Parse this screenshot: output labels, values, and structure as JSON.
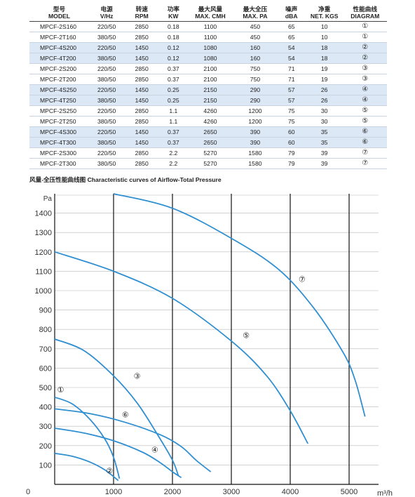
{
  "table": {
    "headers_cn": [
      "型号",
      "电源",
      "转速",
      "功率",
      "最大风量",
      "最大全压",
      "噪声",
      "净重",
      "性能曲线"
    ],
    "headers_en": [
      "MODEL",
      "V/Hz",
      "RPM",
      "KW",
      "MAX. CMH",
      "MAX. PA",
      "dBA",
      "NET. KGS",
      "DIAGRAM"
    ],
    "rows": [
      [
        "MPCF-2S160",
        "220/50",
        "2850",
        "0.18",
        "1100",
        "450",
        "65",
        "10",
        "①"
      ],
      [
        "MPCF-2T160",
        "380/50",
        "2850",
        "0.18",
        "1100",
        "450",
        "65",
        "10",
        "①"
      ],
      [
        "MPCF-4S200",
        "220/50",
        "1450",
        "0.12",
        "1080",
        "160",
        "54",
        "18",
        "②"
      ],
      [
        "MPCF-4T200",
        "380/50",
        "1450",
        "0.12",
        "1080",
        "160",
        "54",
        "18",
        "②"
      ],
      [
        "MPCF-2S200",
        "220/50",
        "2850",
        "0.37",
        "2100",
        "750",
        "71",
        "19",
        "③"
      ],
      [
        "MPCF-2T200",
        "380/50",
        "2850",
        "0.37",
        "2100",
        "750",
        "71",
        "19",
        "③"
      ],
      [
        "MPCF-4S250",
        "220/50",
        "1450",
        "0.25",
        "2150",
        "290",
        "57",
        "26",
        "④"
      ],
      [
        "MPCF-4T250",
        "380/50",
        "1450",
        "0.25",
        "2150",
        "290",
        "57",
        "26",
        "④"
      ],
      [
        "MPCF-2S250",
        "220/50",
        "2850",
        "1.1",
        "4260",
        "1200",
        "75",
        "30",
        "⑤"
      ],
      [
        "MPCF-2T250",
        "380/50",
        "2850",
        "1.1",
        "4260",
        "1200",
        "75",
        "30",
        "⑤"
      ],
      [
        "MPCF-4S300",
        "220/50",
        "1450",
        "0.37",
        "2650",
        "390",
        "60",
        "35",
        "⑥"
      ],
      [
        "MPCF-4T300",
        "380/50",
        "1450",
        "0.37",
        "2650",
        "390",
        "60",
        "35",
        "⑥"
      ],
      [
        "MPCF-2S300",
        "220/50",
        "2850",
        "2.2",
        "5270",
        "1580",
        "79",
        "39",
        "⑦"
      ],
      [
        "MPCF-2T300",
        "380/50",
        "2850",
        "2.2",
        "5270",
        "1580",
        "79",
        "39",
        "⑦"
      ]
    ],
    "shaded_rows": [
      2,
      3,
      6,
      7,
      10,
      11
    ]
  },
  "chart_title": "风量-全压性能曲线图 Characteristic curves of Airflow-Total Pressure",
  "chart_data": {
    "type": "line",
    "xlabel": "m³/h",
    "ylabel": "Pa",
    "xlim": [
      0,
      5500
    ],
    "ylim": [
      0,
      1500
    ],
    "x_ticks": [
      "0",
      "1000",
      "2000",
      "3000",
      "4000",
      "5000"
    ],
    "y_ticks": [
      "100",
      "200",
      "300",
      "400",
      "500",
      "600",
      "700",
      "800",
      "900",
      "1000",
      "1100",
      "1200",
      "1300",
      "1400"
    ],
    "grid": true,
    "series": [
      {
        "name": "①",
        "points": [
          [
            0,
            450
          ],
          [
            300,
            415
          ],
          [
            600,
            335
          ],
          [
            850,
            235
          ],
          [
            1000,
            140
          ],
          [
            1100,
            30
          ]
        ]
      },
      {
        "name": "②",
        "points": [
          [
            0,
            160
          ],
          [
            300,
            145
          ],
          [
            600,
            115
          ],
          [
            850,
            75
          ],
          [
            1080,
            20
          ]
        ]
      },
      {
        "name": "③",
        "points": [
          [
            0,
            750
          ],
          [
            500,
            690
          ],
          [
            1000,
            560
          ],
          [
            1400,
            420
          ],
          [
            1750,
            255
          ],
          [
            2000,
            125
          ],
          [
            2100,
            45
          ]
        ]
      },
      {
        "name": "④",
        "points": [
          [
            0,
            290
          ],
          [
            500,
            265
          ],
          [
            1000,
            225
          ],
          [
            1500,
            165
          ],
          [
            1800,
            110
          ],
          [
            2000,
            65
          ],
          [
            2150,
            35
          ]
        ]
      },
      {
        "name": "⑤",
        "points": [
          [
            0,
            1200
          ],
          [
            1000,
            1100
          ],
          [
            2000,
            960
          ],
          [
            3000,
            740
          ],
          [
            3600,
            560
          ],
          [
            4000,
            380
          ],
          [
            4300,
            210
          ]
        ]
      },
      {
        "name": "⑥",
        "points": [
          [
            0,
            390
          ],
          [
            600,
            365
          ],
          [
            1200,
            320
          ],
          [
            1800,
            255
          ],
          [
            2150,
            195
          ],
          [
            2400,
            125
          ],
          [
            2650,
            65
          ]
        ]
      },
      {
        "name": "⑦",
        "points": [
          [
            1000,
            1500
          ],
          [
            2000,
            1425
          ],
          [
            3000,
            1270
          ],
          [
            3800,
            1110
          ],
          [
            4400,
            910
          ],
          [
            4900,
            680
          ],
          [
            5100,
            540
          ],
          [
            5270,
            350
          ]
        ]
      }
    ],
    "curve_labels": [
      {
        "name": "①",
        "x": 100,
        "y": 490
      },
      {
        "name": "②",
        "x": 930,
        "y": 70
      },
      {
        "name": "③",
        "x": 1400,
        "y": 560
      },
      {
        "name": "④",
        "x": 1700,
        "y": 180
      },
      {
        "name": "⑤",
        "x": 3250,
        "y": 770
      },
      {
        "name": "⑥",
        "x": 1200,
        "y": 360
      },
      {
        "name": "⑦",
        "x": 4200,
        "y": 1060
      }
    ],
    "color": "#2f8fd0"
  }
}
